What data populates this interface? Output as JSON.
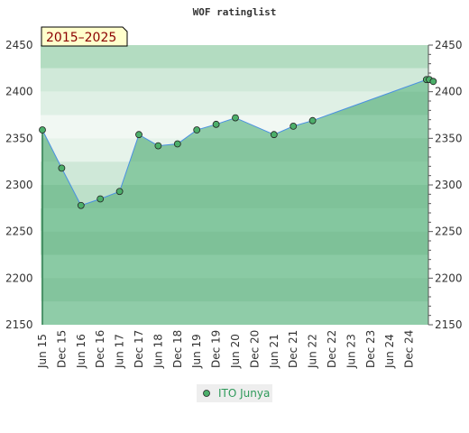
{
  "chart_data": {
    "type": "area",
    "title": "WOF ratinglist",
    "badge": "2015–2025",
    "xlabel": "",
    "ylabel": "",
    "ylim": [
      2150,
      2450
    ],
    "yticks": [
      2150,
      2200,
      2250,
      2300,
      2350,
      2400,
      2450
    ],
    "y_tick_labels": [
      "2150",
      "2200",
      "2250",
      "2300",
      "2350",
      "2400",
      "2450"
    ],
    "x_tick_labels": [
      "Jun 15",
      "Dec 15",
      "Jun 16",
      "Dec 16",
      "Jun 17",
      "Dec 17",
      "Jun 18",
      "Dec 18",
      "Jun 19",
      "Dec 19",
      "Jun 20",
      "Dec 20",
      "Jun 21",
      "Dec 21",
      "Jun 22",
      "Dec 22",
      "Jun 23",
      "Dec 23",
      "Jun 24",
      "Dec 24"
    ],
    "grid": true,
    "legend_position": "bottom-center",
    "series": [
      {
        "name": "ITO Junya",
        "color": "#4a90e2",
        "fill_color": "#7ec49a",
        "marker_color": "#4caf6a",
        "x": [
          0,
          1,
          2,
          3,
          4,
          5,
          6,
          7,
          8,
          9,
          10,
          12,
          13,
          14,
          19.9,
          20.05,
          20.25
        ],
        "values": [
          2359,
          2318,
          2278,
          2285,
          2293,
          2354,
          2342,
          2344,
          2359,
          2365,
          2372,
          2354,
          2363,
          2369,
          2413,
          2413,
          2411
        ]
      }
    ]
  }
}
